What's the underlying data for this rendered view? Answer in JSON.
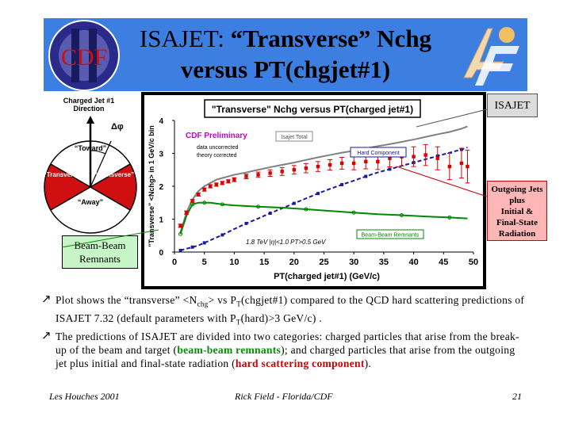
{
  "title": {
    "line1_prefix": "ISAJET: ",
    "line1_rest": "“Transverse” Nchg",
    "line2": "versus PT(chgjet#1)"
  },
  "logos": {
    "cdf_text": "CDF"
  },
  "pie": {
    "header_line1": "Charged Jet #1",
    "header_line2": "Direction",
    "dphi": "Δφ",
    "toward": "“Toward”",
    "transverse_left": "“Transverse”",
    "transverse_right": "“Transverse”",
    "away": "“Away”"
  },
  "beam_beam_box": {
    "line1": "Beam-Beam",
    "line2": "Remnants"
  },
  "isajet_tag": "ISAJET",
  "outgoing_box": {
    "l1": "Outgoing Jets",
    "l2": "plus",
    "l3": "Initial &",
    "l4": "Final-State",
    "l5": "Radiation"
  },
  "chart_data": {
    "type": "line",
    "title": "\"Transverse\" Nchg versus PT(charged jet#1)",
    "xlabel": "PT(charged jet#1) (GeV/c)",
    "ylabel": "\"Transverse\" <Nchg> in 1 GeV/c bin",
    "xlim": [
      0,
      50
    ],
    "ylim": [
      0,
      4
    ],
    "xticks": [
      "0",
      "5",
      "10",
      "15",
      "20",
      "25",
      "30",
      "35",
      "40",
      "45",
      "50"
    ],
    "yticks": [
      "0",
      "1",
      "2",
      "3",
      "4"
    ],
    "annotations": {
      "prelim": "CDF Preliminary",
      "uncorr1": "data uncorrected",
      "uncorr2": "theory corrected",
      "cuts": "1.8 TeV |η|<1.0 PT>0.5 GeV",
      "isajet_total": "Isajet Total",
      "hard_component": "Hard Component",
      "bb_remnants": "Beam-Beam Remnants"
    },
    "series": [
      {
        "name": "Isajet Total",
        "color": "#808080",
        "x": [
          1,
          2,
          3,
          4,
          5,
          6,
          7,
          8,
          9,
          10,
          12,
          14,
          16,
          18,
          20,
          22,
          24,
          26,
          28,
          30,
          32,
          34,
          36,
          38,
          40,
          42,
          44,
          46,
          48,
          49
        ],
        "y": [
          0.6,
          1.2,
          1.6,
          1.85,
          2.0,
          2.1,
          2.2,
          2.25,
          2.3,
          2.35,
          2.42,
          2.5,
          2.58,
          2.65,
          2.72,
          2.8,
          2.88,
          2.95,
          3.02,
          3.08,
          3.15,
          3.22,
          3.28,
          3.35,
          3.42,
          3.5,
          3.58,
          3.65,
          3.75,
          3.82
        ]
      },
      {
        "name": "Hard Component",
        "color": "#1a1a99",
        "x": [
          1,
          2,
          3,
          4,
          5,
          6,
          8,
          10,
          12,
          14,
          16,
          18,
          20,
          22,
          24,
          26,
          28,
          30,
          32,
          34,
          36,
          38,
          40,
          42,
          44,
          46,
          48,
          49
        ],
        "y": [
          0.05,
          0.1,
          0.15,
          0.2,
          0.28,
          0.36,
          0.52,
          0.7,
          0.87,
          1.02,
          1.18,
          1.33,
          1.48,
          1.63,
          1.78,
          1.92,
          2.05,
          2.17,
          2.3,
          2.42,
          2.52,
          2.62,
          2.72,
          2.82,
          2.92,
          3.02,
          3.12,
          3.18
        ]
      },
      {
        "name": "Beam-Beam Remnants",
        "color": "#008800",
        "x": [
          1,
          2,
          3,
          4,
          5,
          6,
          8,
          10,
          14,
          18,
          22,
          26,
          30,
          34,
          38,
          42,
          46,
          49
        ],
        "y": [
          0.55,
          1.1,
          1.45,
          1.5,
          1.5,
          1.5,
          1.45,
          1.42,
          1.38,
          1.35,
          1.3,
          1.25,
          1.2,
          1.15,
          1.12,
          1.08,
          1.05,
          1.02
        ]
      },
      {
        "name": "data",
        "color": "#dd0000",
        "x": [
          1,
          2,
          3,
          4,
          5,
          6,
          7,
          8,
          9,
          10,
          12,
          14,
          16,
          18,
          20,
          22,
          24,
          26,
          28,
          30,
          32,
          34,
          36,
          38,
          40,
          42,
          44,
          46,
          48,
          49
        ],
        "y": [
          0.8,
          1.2,
          1.55,
          1.75,
          1.9,
          2.0,
          2.05,
          2.1,
          2.15,
          2.2,
          2.3,
          2.35,
          2.4,
          2.45,
          2.5,
          2.55,
          2.6,
          2.65,
          2.7,
          2.7,
          2.75,
          2.75,
          2.85,
          2.9,
          2.9,
          2.95,
          2.85,
          2.6,
          2.7,
          2.6
        ],
        "err": [
          0.05,
          0.05,
          0.05,
          0.05,
          0.05,
          0.05,
          0.05,
          0.05,
          0.05,
          0.06,
          0.07,
          0.08,
          0.1,
          0.12,
          0.13,
          0.14,
          0.15,
          0.16,
          0.18,
          0.2,
          0.22,
          0.24,
          0.26,
          0.28,
          0.3,
          0.32,
          0.35,
          0.4,
          0.45,
          0.5
        ]
      }
    ]
  },
  "bullets": {
    "b1_a": "Plot shows the “transverse” <N",
    "b1_sub": "chg",
    "b1_b": "> vs P",
    "b1_sub2": "T",
    "b1_c": "(chgjet#1) compared to the QCD hard scattering predictions of ISAJET 7.32 (default parameters with P",
    "b1_sub3": "T",
    "b1_d": "(hard)>3 GeV/c) .",
    "b2_a": "The predictions of ISAJET are divided into two categories: charged particles that arise from the break-up of the beam and target (",
    "b2_green": "beam-beam remnants",
    "b2_b": "); and charged particles that arise from the outgoing jet plus initial and final-state radiation (",
    "b2_red": "hard scattering component",
    "b2_c": ")."
  },
  "footer": {
    "left": "Les Houches 2001",
    "center": "Rick Field - Florida/CDF",
    "right": "21"
  }
}
